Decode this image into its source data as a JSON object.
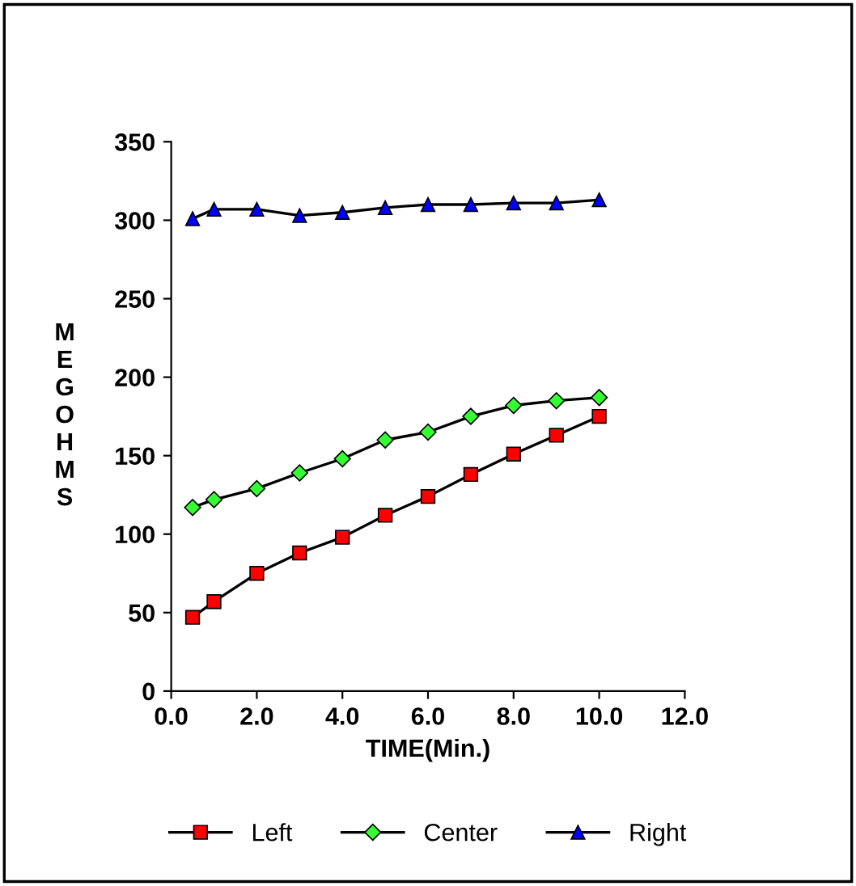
{
  "chart_data": {
    "type": "line",
    "xlabel": "TIME(Min.)",
    "ylabel": "MEGOHMS",
    "x": [
      0.5,
      1,
      2,
      3,
      4,
      5,
      6,
      7,
      8,
      9,
      10
    ],
    "series": [
      {
        "name": "Left",
        "color": "#ff0000",
        "marker": "square",
        "values": [
          47,
          57,
          75,
          88,
          98,
          112,
          124,
          138,
          151,
          163,
          175
        ]
      },
      {
        "name": "Center",
        "color": "#33ff33",
        "marker": "diamond",
        "values": [
          117,
          122,
          129,
          139,
          148,
          160,
          165,
          175,
          182,
          185,
          187
        ]
      },
      {
        "name": "Right",
        "color": "#0000ff",
        "marker": "triangle",
        "values": [
          301,
          307,
          307,
          303,
          305,
          308,
          310,
          310,
          311,
          311,
          313
        ]
      }
    ],
    "xlim": [
      0,
      12
    ],
    "ylim": [
      0,
      350
    ],
    "xticks": [
      {
        "value": 0,
        "label": "0.0"
      },
      {
        "value": 2,
        "label": "2.0"
      },
      {
        "value": 4,
        "label": "4.0"
      },
      {
        "value": 6,
        "label": "6.0"
      },
      {
        "value": 8,
        "label": "8.0"
      },
      {
        "value": 10,
        "label": "10.0"
      },
      {
        "value": 12,
        "label": "12.0"
      }
    ],
    "yticks": [
      0,
      50,
      100,
      150,
      200,
      250,
      300,
      350
    ],
    "grid": false,
    "legend": "bottom",
    "line_style": "solid"
  }
}
